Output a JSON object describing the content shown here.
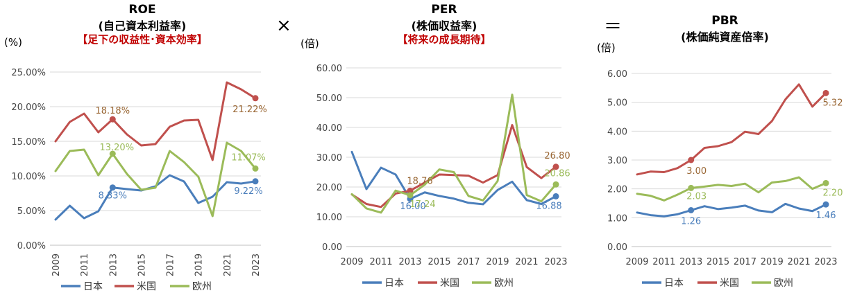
{
  "operators": {
    "times": "×",
    "equals": "＝"
  },
  "chart_data": [
    {
      "type": "line",
      "title": "ROE",
      "subtitle": "(自己資本利益率)",
      "note": "【足下の収益性･資本効率】",
      "ylabel": "(%)",
      "ylim": [
        0,
        25
      ],
      "yticks": [
        "0.00%",
        "5.00%",
        "10.00%",
        "15.00%",
        "20.00%",
        "25.00%"
      ],
      "x": [
        2009,
        2010,
        2011,
        2012,
        2013,
        2014,
        2015,
        2016,
        2017,
        2018,
        2019,
        2020,
        2021,
        2022,
        2023
      ],
      "xticks": [
        "2009",
        "2011",
        "2013",
        "2015",
        "2017",
        "2019",
        "2021",
        "2023"
      ],
      "series": [
        {
          "name": "日本",
          "color": "#4a7ebb",
          "values": [
            3.7,
            5.7,
            3.9,
            4.9,
            8.33,
            8.1,
            7.9,
            8.5,
            10.1,
            9.2,
            6.1,
            7.0,
            9.1,
            8.9,
            9.22
          ]
        },
        {
          "name": "米国",
          "color": "#c0504d",
          "values": [
            15.0,
            17.8,
            19.0,
            16.3,
            18.18,
            16.0,
            14.4,
            14.6,
            17.1,
            18.0,
            18.1,
            12.3,
            23.5,
            22.5,
            21.22
          ]
        },
        {
          "name": "欧州",
          "color": "#9bbb59",
          "values": [
            10.7,
            13.6,
            13.8,
            10.1,
            13.2,
            10.3,
            8.0,
            8.3,
            13.6,
            12.0,
            9.9,
            4.2,
            14.8,
            13.6,
            11.07
          ]
        }
      ],
      "labels": [
        {
          "text": "18.18%",
          "color": "#996633"
        },
        {
          "text": "13.20%",
          "color": "#9bbb59"
        },
        {
          "text": "8.33%",
          "color": "#4a7ebb"
        },
        {
          "text": "21.22%",
          "color": "#996633"
        },
        {
          "text": "11.07%",
          "color": "#9bbb59"
        },
        {
          "text": "9.22%",
          "color": "#4a7ebb"
        }
      ]
    },
    {
      "type": "line",
      "title": "PER",
      "subtitle": "(株価収益率)",
      "note": "【将来の成長期待】",
      "ylabel": "(倍)",
      "ylim": [
        0,
        60
      ],
      "yticks": [
        "0.00",
        "10.00",
        "20.00",
        "30.00",
        "40.00",
        "50.00",
        "60.00"
      ],
      "x": [
        2009,
        2010,
        2011,
        2012,
        2013,
        2014,
        2015,
        2016,
        2017,
        2018,
        2019,
        2020,
        2021,
        2022,
        2023
      ],
      "xticks": [
        "2009",
        "2011",
        "2013",
        "2015",
        "2017",
        "2019",
        "2021",
        "2023"
      ],
      "series": [
        {
          "name": "日本",
          "color": "#4a7ebb",
          "values": [
            31.8,
            19.3,
            26.5,
            24.2,
            16.0,
            18.2,
            17.0,
            16.1,
            14.7,
            14.2,
            19.0,
            21.8,
            15.6,
            14.3,
            16.88
          ]
        },
        {
          "name": "米国",
          "color": "#c0504d",
          "values": [
            17.5,
            14.3,
            13.3,
            17.8,
            18.76,
            21.5,
            24.2,
            24.0,
            23.8,
            21.5,
            24.0,
            40.8,
            26.7,
            23.0,
            26.8
          ]
        },
        {
          "name": "欧州",
          "color": "#9bbb59",
          "values": [
            17.6,
            12.8,
            11.4,
            18.8,
            17.24,
            20.8,
            25.9,
            25.0,
            17.0,
            15.5,
            22.0,
            51.0,
            17.3,
            15.2,
            20.86
          ]
        }
      ],
      "labels": [
        {
          "text": "18.76",
          "color": "#996633"
        },
        {
          "text": "16.00",
          "color": "#4a7ebb"
        },
        {
          "text": "17.24",
          "color": "#9bbb59"
        },
        {
          "text": "26.80",
          "color": "#996633"
        },
        {
          "text": "20.86",
          "color": "#9bbb59"
        },
        {
          "text": "16.88",
          "color": "#4a7ebb"
        }
      ]
    },
    {
      "type": "line",
      "title": "PBR",
      "subtitle": "(株価純資産倍率)",
      "note": "",
      "ylabel": "(倍)",
      "ylim": [
        0,
        6
      ],
      "yticks": [
        "0.00",
        "1.00",
        "2.00",
        "3.00",
        "4.00",
        "5.00",
        "6.00"
      ],
      "x": [
        2009,
        2010,
        2011,
        2012,
        2013,
        2014,
        2015,
        2016,
        2017,
        2018,
        2019,
        2020,
        2021,
        2022,
        2023
      ],
      "xticks": [
        "2009",
        "2011",
        "2013",
        "2015",
        "2017",
        "2019",
        "2021",
        "2023"
      ],
      "series": [
        {
          "name": "日本",
          "color": "#4a7ebb",
          "values": [
            1.18,
            1.09,
            1.05,
            1.12,
            1.26,
            1.4,
            1.3,
            1.35,
            1.42,
            1.25,
            1.19,
            1.48,
            1.32,
            1.23,
            1.46
          ]
        },
        {
          "name": "米国",
          "color": "#c0504d",
          "values": [
            2.5,
            2.6,
            2.58,
            2.72,
            3.0,
            3.42,
            3.48,
            3.62,
            3.98,
            3.9,
            4.35,
            5.1,
            5.62,
            4.85,
            5.32
          ]
        },
        {
          "name": "欧州",
          "color": "#9bbb59",
          "values": [
            1.83,
            1.76,
            1.6,
            1.8,
            2.03,
            2.08,
            2.14,
            2.1,
            2.18,
            1.88,
            2.22,
            2.27,
            2.4,
            2.0,
            2.2
          ]
        }
      ],
      "labels": [
        {
          "text": "3.00",
          "color": "#996633"
        },
        {
          "text": "2.03",
          "color": "#9bbb59"
        },
        {
          "text": "1.26",
          "color": "#4a7ebb"
        },
        {
          "text": "5.32",
          "color": "#996633"
        },
        {
          "text": "2.20",
          "color": "#9bbb59"
        },
        {
          "text": "1.46",
          "color": "#4a7ebb"
        }
      ]
    }
  ]
}
